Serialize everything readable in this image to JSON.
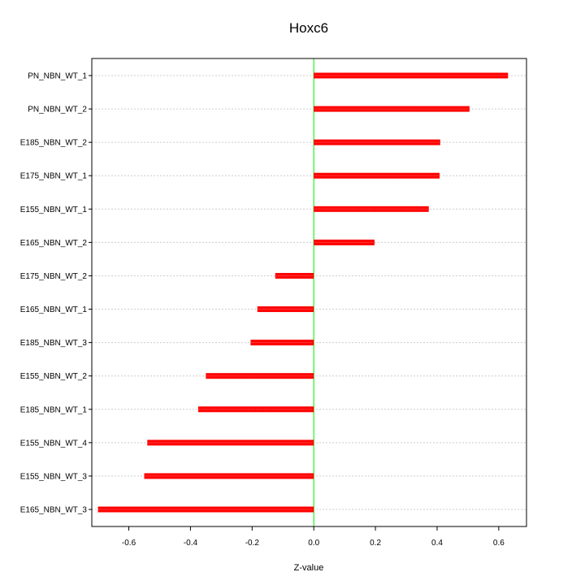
{
  "chart_data": {
    "type": "bar",
    "orientation": "horizontal",
    "title": "Hoxc6",
    "xlabel": "Z-value",
    "ylabel": "",
    "xlim": [
      -0.72,
      0.69
    ],
    "x_ticks": [
      -0.6,
      -0.4,
      -0.2,
      0.0,
      0.2,
      0.4,
      0.6
    ],
    "x_tick_labels": [
      "-0.6",
      "-0.4",
      "-0.2",
      "0.0",
      "0.2",
      "0.4",
      "0.6"
    ],
    "categories": [
      "PN_NBN_WT_1",
      "PN_NBN_WT_2",
      "E185_NBN_WT_2",
      "E175_NBN_WT_1",
      "E155_NBN_WT_1",
      "E165_NBN_WT_2",
      "E175_NBN_WT_2",
      "E165_NBN_WT_1",
      "E185_NBN_WT_3",
      "E155_NBN_WT_2",
      "E185_NBN_WT_1",
      "E155_NBN_WT_4",
      "E155_NBN_WT_3",
      "E165_NBN_WT_3"
    ],
    "values": [
      0.63,
      0.505,
      0.41,
      0.408,
      0.373,
      0.197,
      -0.125,
      -0.183,
      -0.205,
      -0.35,
      -0.375,
      -0.54,
      -0.55,
      -0.7
    ],
    "grid": true,
    "bar_color": "#ff0000",
    "bar_highlight_color": "#ff6666",
    "zero_line_color": "#00ee00",
    "grid_color": "#cccccc"
  }
}
